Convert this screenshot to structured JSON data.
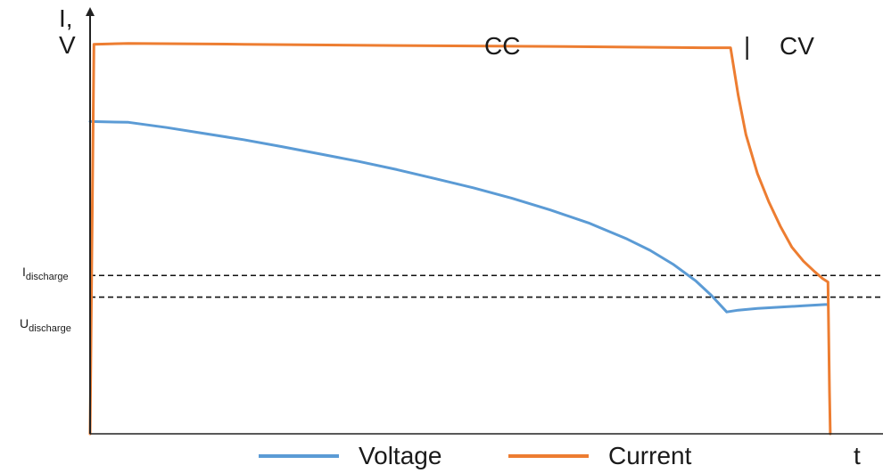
{
  "chart_data": {
    "type": "line",
    "title": "",
    "y_label": "I,\nV",
    "x_label": "t",
    "phase_labels": [
      "CC",
      "CV"
    ],
    "phase_boundary_t": 0.835,
    "phase_marker": "|",
    "threshold_labels": {
      "current": {
        "main": "I",
        "sub": "discharge"
      },
      "voltage": {
        "main": "U",
        "sub": "discharge"
      }
    },
    "thresholds": {
      "current": 0.365,
      "voltage": 0.315
    },
    "xlim": [
      0,
      1
    ],
    "ylim": [
      0,
      1
    ],
    "grid": false,
    "legend_position": "bottom",
    "colors": {
      "voltage": "#5b9bd5",
      "current": "#ed7d31",
      "axis": "#222222",
      "threshold": "#111111"
    },
    "series": [
      {
        "name": "Voltage",
        "x": [
          0.0,
          0.05,
          0.1,
          0.15,
          0.2,
          0.25,
          0.3,
          0.35,
          0.4,
          0.45,
          0.5,
          0.55,
          0.6,
          0.65,
          0.7,
          0.73,
          0.76,
          0.79,
          0.81,
          0.83,
          0.845,
          0.87,
          0.9,
          0.93,
          0.958,
          0.962
        ],
        "y": [
          0.72,
          0.718,
          0.706,
          0.692,
          0.678,
          0.662,
          0.645,
          0.628,
          0.609,
          0.588,
          0.567,
          0.543,
          0.516,
          0.486,
          0.449,
          0.423,
          0.391,
          0.352,
          0.319,
          0.281,
          0.285,
          0.289,
          0.292,
          0.295,
          0.298,
          0.298
        ]
      },
      {
        "name": "Current",
        "x": [
          0.0,
          0.005,
          0.05,
          0.2,
          0.4,
          0.6,
          0.8,
          0.835,
          0.845,
          0.855,
          0.87,
          0.885,
          0.9,
          0.915,
          0.93,
          0.945,
          0.955,
          0.962,
          0.964,
          0.965
        ],
        "y": [
          0.0,
          0.898,
          0.9,
          0.898,
          0.895,
          0.893,
          0.89,
          0.89,
          0.78,
          0.69,
          0.6,
          0.534,
          0.478,
          0.43,
          0.398,
          0.373,
          0.358,
          0.35,
          0.1,
          0.0
        ]
      }
    ]
  }
}
